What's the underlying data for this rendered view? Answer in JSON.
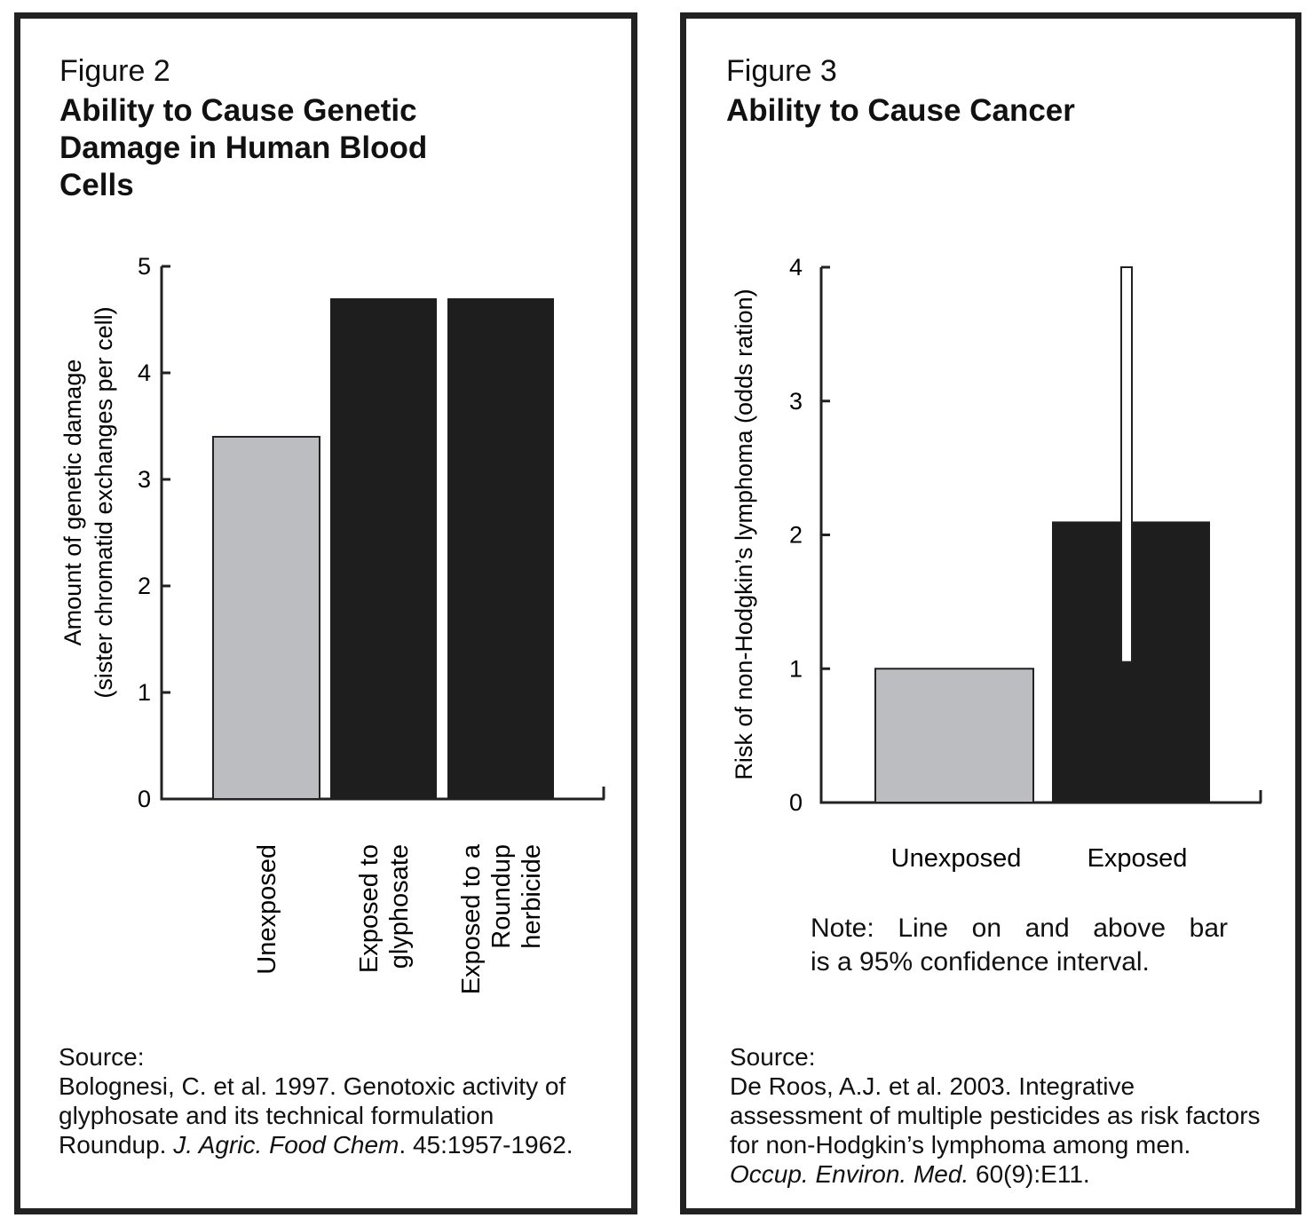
{
  "figures": [
    {
      "label": "Figure 2",
      "title_lines": [
        "Ability to Cause Genetic",
        "Damage in Human Blood",
        "Cells"
      ],
      "source": {
        "label": "Source:",
        "text_main": "Bolognesi, C. et al. 1997. Genotoxic activity of glyphosate and its technical formulation Roundup.",
        "journal": "J. Agric. Food Chem",
        "tail": ". 45:1957-1962."
      }
    },
    {
      "label": "Figure 3",
      "title_lines": [
        "Ability to Cause Cancer"
      ],
      "note_lines": [
        "Note: Line on and above bar",
        "is a 95% confidence interval."
      ],
      "source": {
        "label": "Source:",
        "text_main": "De Roos, A.J. et al. 2003. Integrative assessment of multiple pesticides as risk factors for non-Hodgkin’s lymphoma among men.",
        "journal": "Occup. Environ. Med.",
        "tail": " 60(9):E11."
      }
    }
  ],
  "colors": {
    "unexposed": "#bcbdc0",
    "exposed": "#1e1e1e",
    "axis": "#222222",
    "ci_fill": "#ffffff"
  },
  "chart_data": [
    {
      "type": "bar",
      "categories": [
        [
          "Unexposed"
        ],
        [
          "Exposed to",
          "glyphosate"
        ],
        [
          "Exposed to a",
          "Roundup",
          "herbicide"
        ]
      ],
      "values": [
        3.4,
        4.7,
        4.7
      ],
      "ylim": [
        0,
        5
      ],
      "yticks": [
        "0",
        "1",
        "2",
        "3",
        "4",
        "5"
      ],
      "ylabel_lines": [
        "Amount of genetic damage",
        "(sister chromatid exchanges per cell)"
      ],
      "xlabel": ""
    },
    {
      "type": "bar",
      "categories": [
        "Unexposed",
        "Exposed"
      ],
      "values": [
        1.0,
        2.1
      ],
      "ci": [
        null,
        [
          1.05,
          4.0
        ]
      ],
      "ylim": [
        0,
        4
      ],
      "yticks": [
        "0",
        "1",
        "2",
        "3",
        "4"
      ],
      "ylabel": "Risk of non-Hodgkin’s lymphoma (odds ration)",
      "xlabel": ""
    }
  ]
}
